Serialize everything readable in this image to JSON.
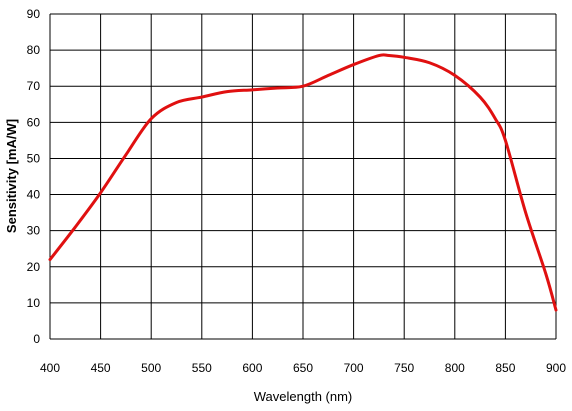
{
  "chart_data": {
    "type": "line",
    "title": "",
    "xlabel": "Wavelength (nm)",
    "ylabel": "Sensitivity [mA/W]",
    "xlim": [
      400,
      900
    ],
    "ylim": [
      0,
      90
    ],
    "xticks": [
      "400",
      "450",
      "500",
      "550",
      "600",
      "650",
      "700",
      "750",
      "800",
      "850",
      "900"
    ],
    "yticks": [
      "0",
      "10",
      "20",
      "30",
      "40",
      "50",
      "60",
      "70",
      "80",
      "90"
    ],
    "grid": true,
    "legend": "none",
    "colors": {
      "line": "#e01010",
      "grid": "#000000",
      "background": "#ffffff"
    },
    "series": [
      {
        "x": [
          400,
          425,
          450,
          475,
          500,
          525,
          550,
          575,
          600,
          625,
          650,
          675,
          700,
          725,
          735,
          750,
          775,
          800,
          825,
          840,
          850,
          870,
          890,
          900
        ],
        "y": [
          22,
          31,
          40.5,
          51,
          61,
          65.5,
          67,
          68.5,
          69,
          69.5,
          70,
          73,
          76,
          78.5,
          78.5,
          78,
          76.5,
          73,
          67,
          61,
          55,
          35,
          18,
          8
        ]
      }
    ]
  }
}
